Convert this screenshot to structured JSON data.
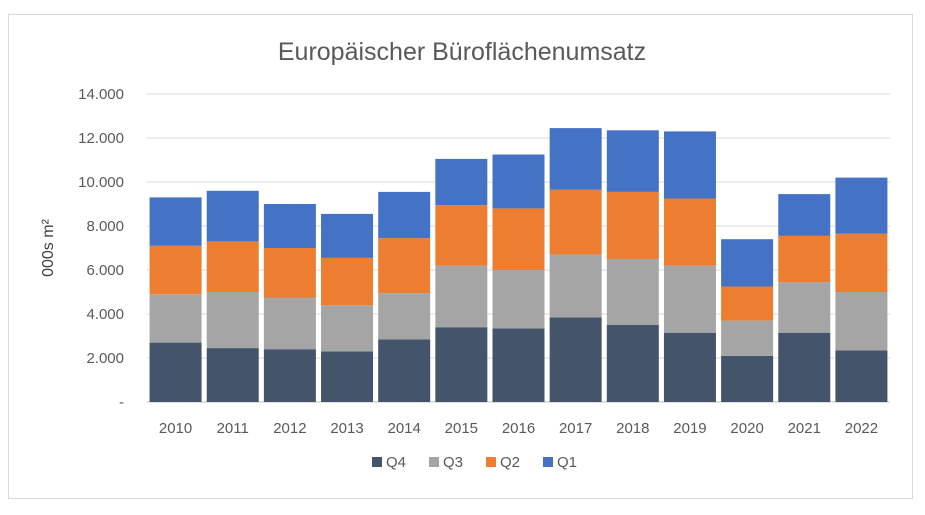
{
  "chart_data": {
    "type": "bar",
    "stacked": true,
    "title": "Europäischer Büroflächenumsatz",
    "ylabel": "000s m²",
    "xlabel": "",
    "ylim": [
      0,
      14000
    ],
    "yticks": [
      0,
      2000,
      4000,
      6000,
      8000,
      10000,
      12000,
      14000
    ],
    "ytick_labels": [
      "-",
      "2.000",
      "4.000",
      "6.000",
      "8.000",
      "10.000",
      "12.000",
      "14.000"
    ],
    "grid": true,
    "legend_position": "bottom",
    "categories": [
      "2010",
      "2011",
      "2012",
      "2013",
      "2014",
      "2015",
      "2016",
      "2017",
      "2018",
      "2019",
      "2020",
      "2021",
      "2022"
    ],
    "series": [
      {
        "name": "Q4",
        "color": "#44546a",
        "values": [
          2700,
          2450,
          2400,
          2300,
          2850,
          3400,
          3350,
          3850,
          3500,
          3150,
          2100,
          3150,
          2350
        ]
      },
      {
        "name": "Q3",
        "color": "#a5a5a5",
        "values": [
          2200,
          2550,
          2350,
          2100,
          2100,
          2800,
          2650,
          2850,
          3000,
          3050,
          1600,
          2300,
          2650
        ]
      },
      {
        "name": "Q2",
        "color": "#ed7d31",
        "values": [
          2200,
          2300,
          2250,
          2150,
          2500,
          2750,
          2800,
          2950,
          3050,
          3050,
          1550,
          2100,
          2650
        ]
      },
      {
        "name": "Q1",
        "color": "#4472c4",
        "values": [
          2200,
          2300,
          2000,
          2000,
          2100,
          2100,
          2450,
          2800,
          2800,
          3050,
          2150,
          1900,
          2550
        ]
      }
    ]
  }
}
